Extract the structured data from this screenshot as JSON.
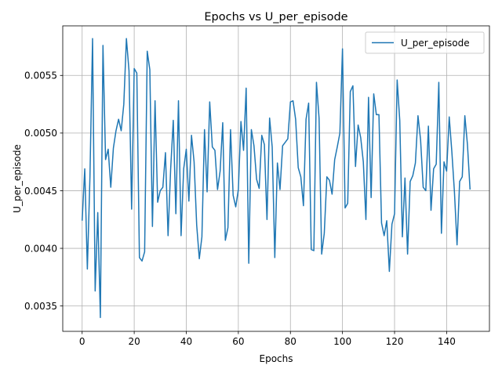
{
  "chart_data": {
    "type": "line",
    "title": "Epochs vs U_per_episode",
    "xlabel": "Epochs",
    "ylabel": "U_per_episode",
    "xlim": [
      -7.45,
      156.45
    ],
    "ylim": [
      0.00328,
      0.00593
    ],
    "xticks": [
      0,
      20,
      40,
      60,
      80,
      100,
      120,
      140
    ],
    "xtick_labels": [
      "0",
      "20",
      "40",
      "60",
      "80",
      "100",
      "120",
      "140"
    ],
    "yticks": [
      0.0035,
      0.004,
      0.0045,
      0.005,
      0.0055
    ],
    "ytick_labels": [
      "0.0035",
      "0.0040",
      "0.0045",
      "0.0050",
      "0.0055"
    ],
    "grid": true,
    "legend_position": "top-right",
    "color": "#1f77b4",
    "series": [
      {
        "name": "U_per_episode",
        "x": [
          0,
          1,
          2,
          3,
          4,
          5,
          6,
          7,
          8,
          9,
          10,
          11,
          12,
          13,
          14,
          15,
          16,
          17,
          18,
          19,
          20,
          21,
          22,
          23,
          24,
          25,
          26,
          27,
          28,
          29,
          30,
          31,
          32,
          33,
          34,
          35,
          36,
          37,
          38,
          39,
          40,
          41,
          42,
          43,
          44,
          45,
          46,
          47,
          48,
          49,
          50,
          51,
          52,
          53,
          54,
          55,
          56,
          57,
          58,
          59,
          60,
          61,
          62,
          63,
          64,
          65,
          66,
          67,
          68,
          69,
          70,
          71,
          72,
          73,
          74,
          75,
          76,
          77,
          78,
          79,
          80,
          81,
          82,
          83,
          84,
          85,
          86,
          87,
          88,
          89,
          90,
          91,
          92,
          93,
          94,
          95,
          96,
          97,
          98,
          99,
          100,
          101,
          102,
          103,
          104,
          105,
          106,
          107,
          108,
          109,
          110,
          111,
          112,
          113,
          114,
          115,
          116,
          117,
          118,
          119,
          120,
          121,
          122,
          123,
          124,
          125,
          126,
          127,
          128,
          129,
          130,
          131,
          132,
          133,
          134,
          135,
          136,
          137,
          138,
          139,
          140,
          141,
          142,
          143,
          144,
          145,
          146,
          147,
          148,
          149
        ],
        "values": [
          0.00424,
          0.00469,
          0.00382,
          0.00462,
          0.00582,
          0.00363,
          0.00431,
          0.0034,
          0.00576,
          0.00477,
          0.00486,
          0.00453,
          0.00487,
          0.00502,
          0.00512,
          0.00502,
          0.00525,
          0.00582,
          0.00554,
          0.00434,
          0.00556,
          0.00552,
          0.00392,
          0.00389,
          0.00397,
          0.00571,
          0.00555,
          0.00419,
          0.00528,
          0.0044,
          0.0045,
          0.00453,
          0.00483,
          0.00411,
          0.00469,
          0.00511,
          0.0043,
          0.00528,
          0.00411,
          0.00469,
          0.00486,
          0.00441,
          0.00498,
          0.00475,
          0.0042,
          0.00391,
          0.0041,
          0.00503,
          0.00449,
          0.00527,
          0.00488,
          0.00485,
          0.00451,
          0.00467,
          0.00509,
          0.00407,
          0.00418,
          0.00503,
          0.00446,
          0.00436,
          0.00451,
          0.0051,
          0.00485,
          0.00539,
          0.00387,
          0.00503,
          0.00489,
          0.0046,
          0.00452,
          0.00498,
          0.0049,
          0.00425,
          0.00513,
          0.00488,
          0.00392,
          0.00474,
          0.00451,
          0.00489,
          0.00492,
          0.00495,
          0.00527,
          0.00528,
          0.00512,
          0.0047,
          0.00462,
          0.00437,
          0.00512,
          0.00526,
          0.00399,
          0.00398,
          0.00544,
          0.00513,
          0.00395,
          0.00413,
          0.00462,
          0.00459,
          0.00447,
          0.00477,
          0.00488,
          0.005,
          0.00573,
          0.00435,
          0.00439,
          0.00536,
          0.00541,
          0.00471,
          0.00507,
          0.00496,
          0.00475,
          0.00425,
          0.00531,
          0.00444,
          0.00534,
          0.00516,
          0.00516,
          0.00422,
          0.00411,
          0.00424,
          0.0038,
          0.00421,
          0.0043,
          0.00546,
          0.00511,
          0.0041,
          0.00461,
          0.00395,
          0.00458,
          0.00463,
          0.00474,
          0.00515,
          0.00494,
          0.00453,
          0.0045,
          0.00506,
          0.00433,
          0.00469,
          0.00473,
          0.00544,
          0.00413,
          0.00475,
          0.00467,
          0.00514,
          0.00484,
          0.00449,
          0.00403,
          0.00458,
          0.00462,
          0.00515,
          0.0049,
          0.00451
        ]
      }
    ]
  }
}
